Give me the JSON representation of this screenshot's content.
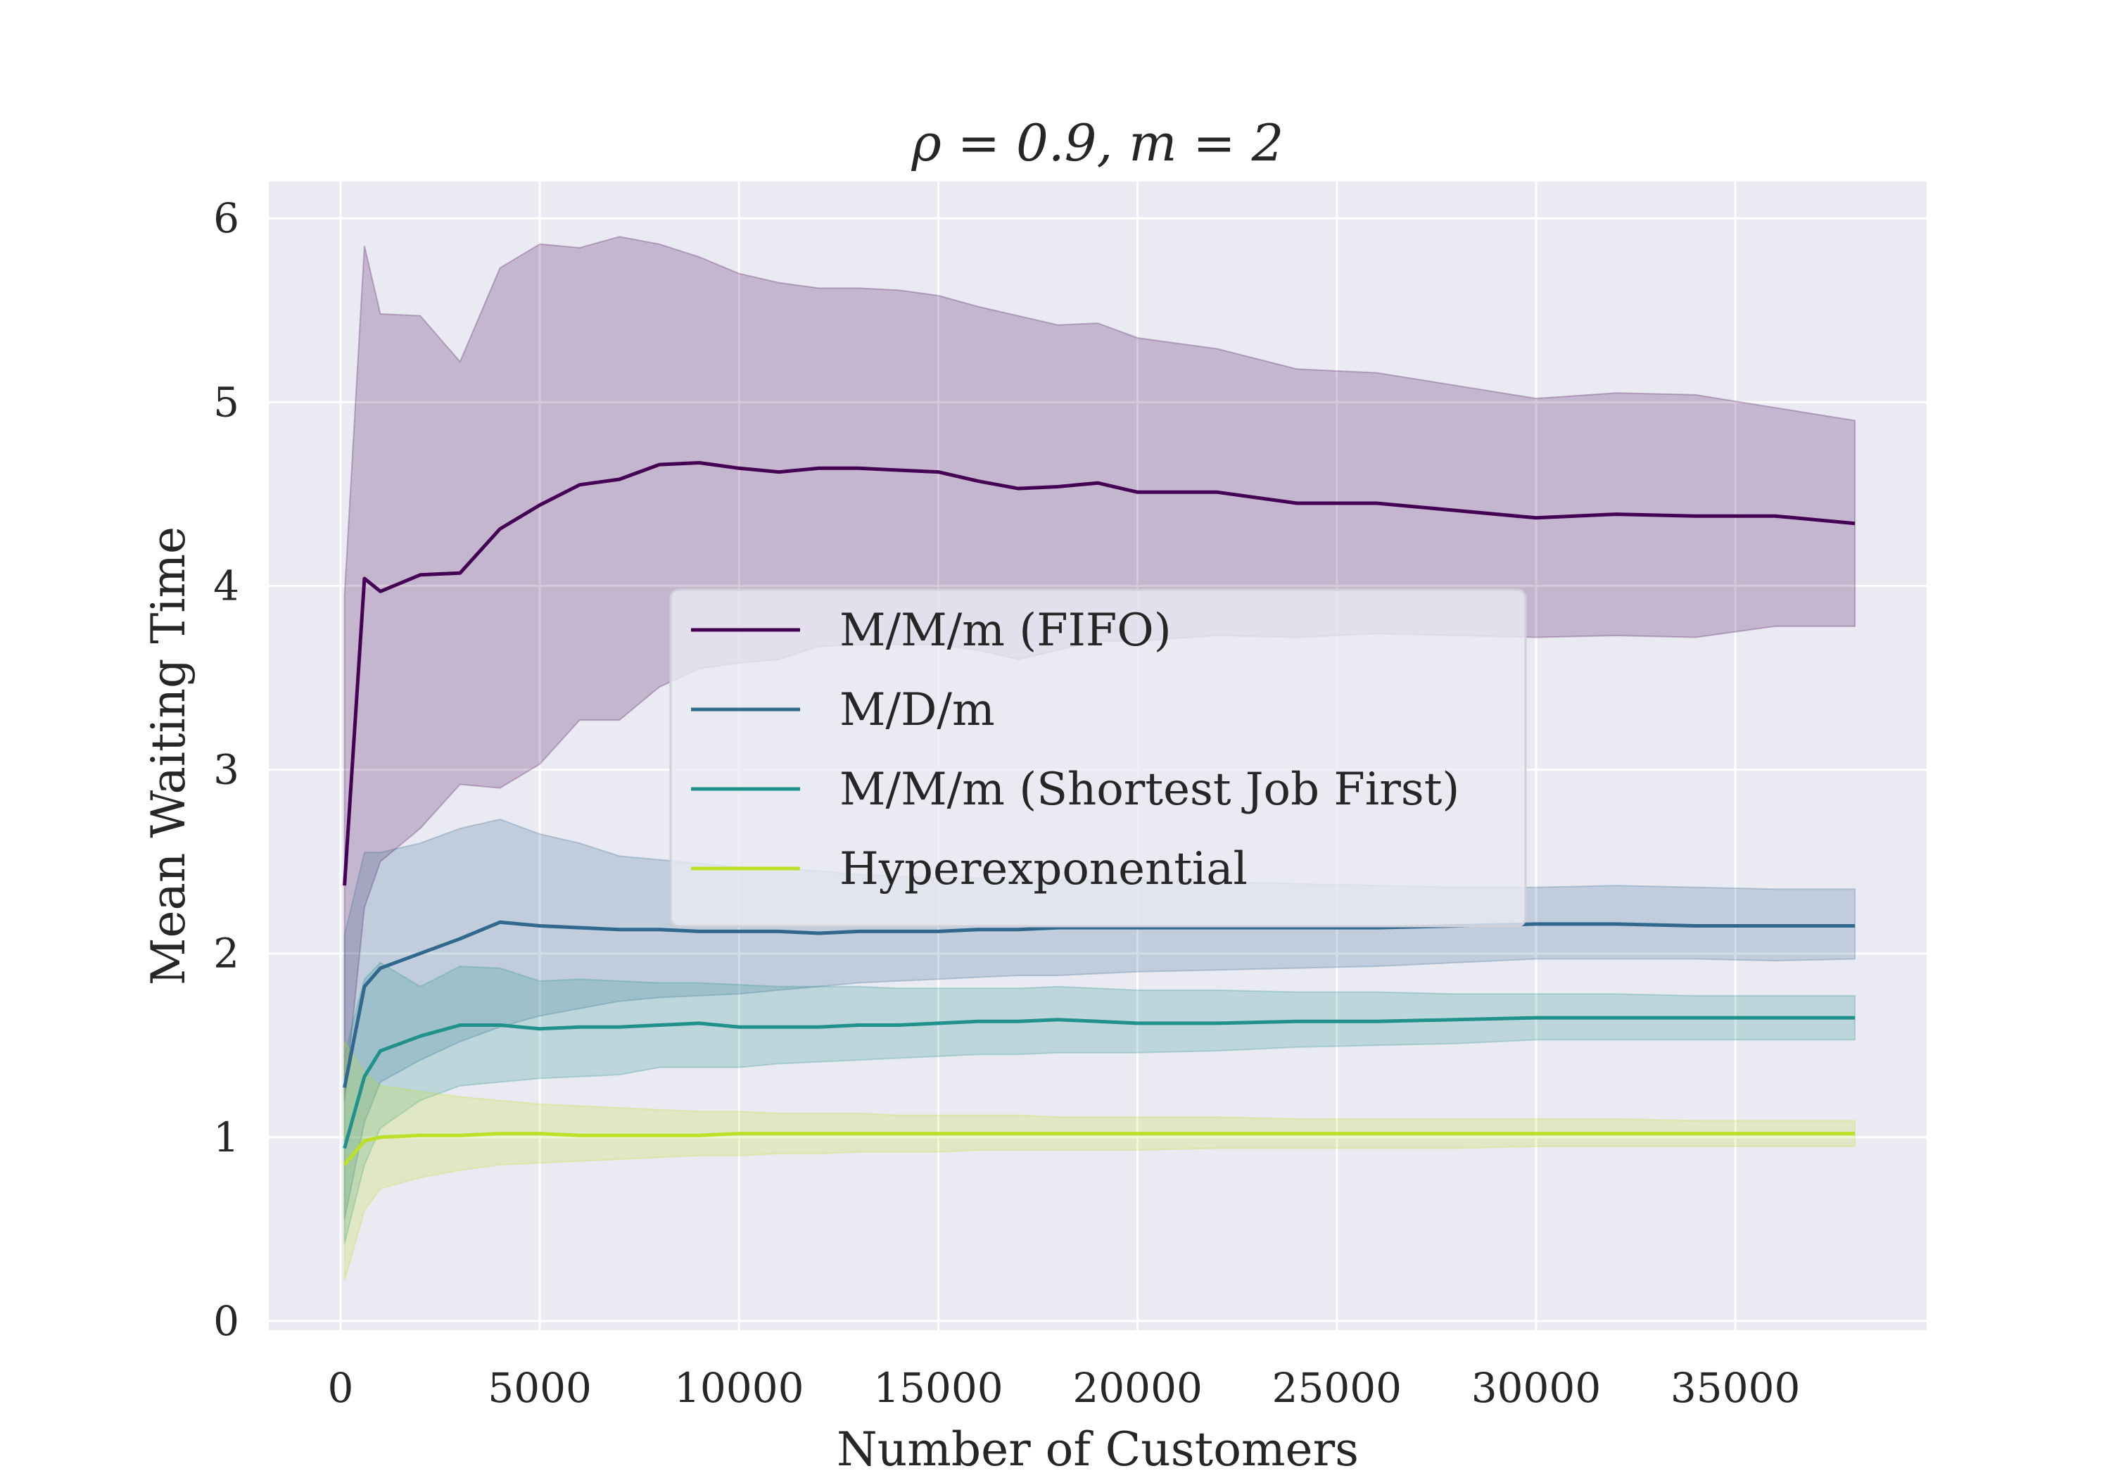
{
  "chart_data": {
    "type": "line",
    "title": "ρ = 0.9, m = 2",
    "xlabel": "Number of Customers",
    "ylabel": "Mean Waiting Time",
    "xlim": [
      -1800,
      39800
    ],
    "ylim": [
      -0.05,
      6.2
    ],
    "xticks": [
      0,
      5000,
      10000,
      15000,
      20000,
      25000,
      30000,
      35000
    ],
    "xtick_labels": [
      "0",
      "5000",
      "10000",
      "15000",
      "20000",
      "25000",
      "30000",
      "35000"
    ],
    "yticks": [
      0,
      1,
      2,
      3,
      4,
      5,
      6
    ],
    "ytick_labels": [
      "0",
      "1",
      "2",
      "3",
      "4",
      "5",
      "6"
    ],
    "grid": true,
    "legend_position": "center",
    "x": [
      100,
      600,
      1000,
      2000,
      3000,
      4000,
      5000,
      6000,
      7000,
      8000,
      9000,
      10000,
      11000,
      12000,
      13000,
      14000,
      15000,
      16000,
      17000,
      18000,
      19000,
      20000,
      22000,
      24000,
      26000,
      28000,
      30000,
      32000,
      34000,
      36000,
      38000
    ],
    "series": [
      {
        "name": "M/M/m (FIFO)",
        "color": "#440154",
        "values": [
          2.37,
          4.04,
          3.97,
          4.06,
          4.07,
          4.31,
          4.44,
          4.55,
          4.58,
          4.66,
          4.67,
          4.64,
          4.62,
          4.64,
          4.64,
          4.63,
          4.62,
          4.57,
          4.53,
          4.54,
          4.56,
          4.51,
          4.51,
          4.45,
          4.45,
          4.41,
          4.37,
          4.39,
          4.38,
          4.38,
          4.34
        ],
        "lower": [
          1.2,
          2.25,
          2.5,
          2.68,
          2.92,
          2.9,
          3.03,
          3.27,
          3.27,
          3.45,
          3.55,
          3.58,
          3.6,
          3.67,
          3.68,
          3.68,
          3.68,
          3.65,
          3.6,
          3.65,
          3.7,
          3.7,
          3.73,
          3.72,
          3.74,
          3.73,
          3.72,
          3.73,
          3.72,
          3.78,
          3.78
        ],
        "upper": [
          3.95,
          5.85,
          5.48,
          5.47,
          5.22,
          5.73,
          5.86,
          5.84,
          5.9,
          5.86,
          5.79,
          5.7,
          5.65,
          5.62,
          5.62,
          5.61,
          5.58,
          5.52,
          5.47,
          5.42,
          5.43,
          5.35,
          5.29,
          5.18,
          5.16,
          5.09,
          5.02,
          5.05,
          5.04,
          4.97,
          4.9
        ]
      },
      {
        "name": "M/D/m",
        "color": "#31688e",
        "values": [
          1.27,
          1.82,
          1.92,
          2.0,
          2.08,
          2.17,
          2.15,
          2.14,
          2.13,
          2.13,
          2.12,
          2.12,
          2.12,
          2.11,
          2.12,
          2.12,
          2.12,
          2.13,
          2.13,
          2.14,
          2.14,
          2.14,
          2.14,
          2.14,
          2.14,
          2.15,
          2.16,
          2.16,
          2.15,
          2.15,
          2.15
        ],
        "lower": [
          0.55,
          1.08,
          1.3,
          1.42,
          1.52,
          1.6,
          1.66,
          1.7,
          1.74,
          1.76,
          1.77,
          1.78,
          1.8,
          1.82,
          1.84,
          1.85,
          1.86,
          1.87,
          1.88,
          1.88,
          1.89,
          1.9,
          1.91,
          1.92,
          1.93,
          1.95,
          1.97,
          1.97,
          1.97,
          1.96,
          1.97
        ],
        "upper": [
          2.1,
          2.55,
          2.55,
          2.6,
          2.68,
          2.73,
          2.65,
          2.6,
          2.53,
          2.51,
          2.49,
          2.47,
          2.46,
          2.45,
          2.43,
          2.42,
          2.41,
          2.41,
          2.4,
          2.4,
          2.4,
          2.4,
          2.39,
          2.38,
          2.37,
          2.36,
          2.36,
          2.37,
          2.36,
          2.35,
          2.35
        ]
      },
      {
        "name": "M/M/m (Shortest Job First)",
        "color": "#21918c",
        "values": [
          0.94,
          1.33,
          1.47,
          1.55,
          1.61,
          1.61,
          1.59,
          1.6,
          1.6,
          1.61,
          1.62,
          1.6,
          1.6,
          1.6,
          1.61,
          1.61,
          1.62,
          1.63,
          1.63,
          1.64,
          1.63,
          1.62,
          1.62,
          1.63,
          1.63,
          1.64,
          1.65,
          1.65,
          1.65,
          1.65,
          1.65
        ],
        "lower": [
          0.42,
          0.85,
          1.05,
          1.2,
          1.28,
          1.3,
          1.32,
          1.33,
          1.34,
          1.38,
          1.38,
          1.38,
          1.4,
          1.41,
          1.42,
          1.43,
          1.44,
          1.45,
          1.45,
          1.46,
          1.46,
          1.46,
          1.47,
          1.49,
          1.5,
          1.51,
          1.53,
          1.53,
          1.53,
          1.53,
          1.53
        ],
        "upper": [
          1.45,
          1.86,
          1.95,
          1.82,
          1.93,
          1.92,
          1.85,
          1.86,
          1.85,
          1.84,
          1.84,
          1.83,
          1.82,
          1.82,
          1.82,
          1.81,
          1.81,
          1.81,
          1.81,
          1.82,
          1.81,
          1.8,
          1.8,
          1.79,
          1.79,
          1.78,
          1.78,
          1.78,
          1.77,
          1.77,
          1.77
        ]
      },
      {
        "name": "Hyperexponential",
        "color": "#bddf26",
        "values": [
          0.85,
          0.98,
          1.0,
          1.01,
          1.01,
          1.02,
          1.02,
          1.01,
          1.01,
          1.01,
          1.01,
          1.02,
          1.02,
          1.02,
          1.02,
          1.02,
          1.02,
          1.02,
          1.02,
          1.02,
          1.02,
          1.02,
          1.02,
          1.02,
          1.02,
          1.02,
          1.02,
          1.02,
          1.02,
          1.02,
          1.02
        ],
        "lower": [
          0.22,
          0.6,
          0.72,
          0.78,
          0.82,
          0.85,
          0.86,
          0.87,
          0.88,
          0.89,
          0.9,
          0.9,
          0.91,
          0.91,
          0.92,
          0.92,
          0.92,
          0.93,
          0.93,
          0.93,
          0.93,
          0.93,
          0.94,
          0.94,
          0.94,
          0.94,
          0.95,
          0.95,
          0.95,
          0.95,
          0.95
        ],
        "upper": [
          1.52,
          1.35,
          1.28,
          1.25,
          1.22,
          1.2,
          1.18,
          1.17,
          1.16,
          1.15,
          1.14,
          1.14,
          1.13,
          1.13,
          1.13,
          1.12,
          1.12,
          1.12,
          1.12,
          1.11,
          1.11,
          1.11,
          1.11,
          1.1,
          1.1,
          1.1,
          1.1,
          1.1,
          1.09,
          1.09,
          1.09
        ]
      }
    ]
  }
}
